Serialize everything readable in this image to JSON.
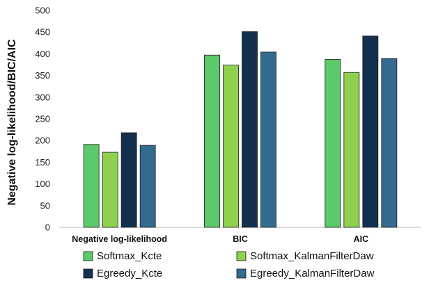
{
  "chart_data": {
    "type": "bar",
    "ylabel": "Negative log-likelihood/BIC/AIC",
    "xlabel": "",
    "ylim": [
      0,
      500
    ],
    "yticks": [
      0,
      50,
      100,
      150,
      200,
      250,
      300,
      350,
      400,
      450,
      500
    ],
    "grid": false,
    "legend_position": "bottom",
    "categories": [
      "Negative log-likelihood",
      "BIC",
      "AIC"
    ],
    "series": [
      {
        "name": "Softmax_Kcte",
        "color": "#5cc96a",
        "values": [
          191,
          397,
          387
        ]
      },
      {
        "name": "Softmax_KalmanFilterDaw",
        "color": "#8fd14f",
        "values": [
          173,
          374,
          357
        ]
      },
      {
        "name": "Egreedy_Kcte",
        "color": "#14304f",
        "values": [
          218,
          451,
          441
        ]
      },
      {
        "name": "Egreedy_KalmanFilterDaw",
        "color": "#336b8f",
        "values": [
          189,
          404,
          389
        ]
      }
    ]
  }
}
